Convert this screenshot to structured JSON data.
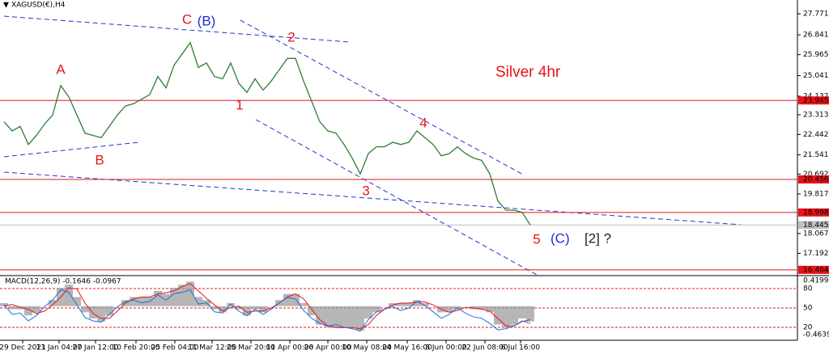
{
  "chart_data": [
    {
      "type": "line",
      "title": "XAGUSD(€),H4",
      "annotations": [
        {
          "text": "C",
          "color": "#e8141a"
        },
        {
          "text": "(B)",
          "color": "#1f2fd0"
        },
        {
          "text": "A",
          "color": "#e8141a"
        },
        {
          "text": "B",
          "color": "#e8141a"
        },
        {
          "text": "1",
          "color": "#e8141a"
        },
        {
          "text": "2",
          "color": "#e8141a"
        },
        {
          "text": "3",
          "color": "#e8141a"
        },
        {
          "text": "4",
          "color": "#e8141a"
        },
        {
          "text": "5",
          "color": "#e8141a"
        },
        {
          "text": "(C)",
          "color": "#1f2fd0"
        },
        {
          "text": "[2] ?",
          "color": "#222222"
        },
        {
          "text": "Silver 4hr",
          "color": "#e8141a"
        }
      ],
      "series": [
        {
          "color": "#2e7d32",
          "values": [
            23.0,
            22.6,
            22.8,
            22.0,
            22.4,
            22.9,
            23.3,
            24.6,
            24.1,
            23.3,
            22.5,
            22.4,
            22.3,
            22.8,
            23.3,
            23.7,
            23.8,
            24.0,
            24.2,
            25.0,
            24.5,
            25.5,
            26.0,
            26.5,
            25.4,
            25.6,
            25.0,
            24.9,
            25.6,
            24.7,
            24.3,
            24.9,
            24.4,
            24.8,
            25.3,
            25.8,
            25.8,
            24.8,
            23.9,
            23.0,
            22.6,
            22.5,
            22.0,
            21.4,
            20.7,
            21.6,
            21.9,
            21.9,
            22.1,
            22.0,
            22.1,
            22.6,
            22.3,
            22.0,
            21.5,
            21.6,
            21.9,
            21.6,
            21.4,
            21.3,
            20.7,
            19.5,
            19.1,
            19.1,
            19.0,
            18.445
          ]
        }
      ],
      "levels": [
        23.945,
        20.456,
        18.998,
        16.464
      ],
      "level_color": "#e8141a",
      "last_price": 18.445,
      "xlim": [
        -0.5,
        98
      ],
      "ylim": [
        16.21,
        28.38
      ],
      "yticks": [
        27.771,
        26.841,
        25.965,
        25.041,
        24.132,
        23.313,
        22.442,
        21.541,
        20.692,
        19.817,
        18.067,
        17.192
      ],
      "xticks": [
        {
          "value": 2.3,
          "label": "29 Dec 2021"
        },
        {
          "value": 6.8,
          "label": "13 Jan 04:00"
        },
        {
          "value": 11.3,
          "label": "27 Jan 12:00"
        },
        {
          "value": 16.3,
          "label": "10 Feb 20:00"
        },
        {
          "value": 21.1,
          "label": "25 Feb 04:00"
        },
        {
          "value": 25.7,
          "label": "11 Mar 12:00"
        },
        {
          "value": 30.5,
          "label": "25 Mar 20:00"
        },
        {
          "value": 35.3,
          "label": "11 Apr 00:00"
        },
        {
          "value": 40,
          "label": "26 Apr 00:00"
        },
        {
          "value": 44.8,
          "label": "10 May 08:00"
        },
        {
          "value": 49.8,
          "label": "24 May 16:00"
        },
        {
          "value": 54.6,
          "label": "8 Jun 00:00"
        },
        {
          "value": 59.4,
          "label": "22 Jun 08:00"
        },
        {
          "value": 63.8,
          "label": "6 Jul 16:00"
        }
      ]
    },
    {
      "type": "macd",
      "title": "MACD(12,26,9) -0.1646 -0.0967",
      "ylim": [
        -0.4639,
        0.4199
      ],
      "yticks": [
        0.4199,
        -0.4639
      ],
      "y2lim": [
        0,
        100
      ],
      "levels": [
        80,
        50,
        20
      ],
      "series": [
        {
          "color": "#9e9e9e",
          "values": [
            0.05,
            -0.05,
            -0.05,
            -0.15,
            -0.1,
            0.0,
            0.1,
            0.3,
            0.35,
            0.15,
            -0.1,
            -0.2,
            -0.25,
            -0.15,
            0.0,
            0.1,
            0.15,
            0.15,
            0.15,
            0.25,
            0.2,
            0.3,
            0.35,
            0.4,
            0.15,
            0.1,
            -0.05,
            -0.1,
            0.05,
            -0.05,
            -0.15,
            -0.05,
            -0.1,
            0.0,
            0.1,
            0.2,
            0.2,
            0.05,
            -0.15,
            -0.3,
            -0.35,
            -0.35,
            -0.35,
            -0.35,
            -0.4,
            -0.2,
            -0.1,
            0.0,
            0.05,
            0.05,
            0.05,
            0.1,
            0.05,
            0.0,
            -0.1,
            -0.1,
            -0.05,
            0.0,
            -0.05,
            -0.05,
            -0.1,
            -0.3,
            -0.35,
            -0.3,
            -0.2,
            -0.25
          ]
        },
        {
          "color": "#e8141a",
          "values": [
            0.0,
            0.03,
            -0.02,
            -0.05,
            -0.12,
            -0.08,
            0.02,
            0.15,
            0.3,
            0.28,
            0.05,
            -0.12,
            -0.2,
            -0.2,
            -0.08,
            0.05,
            0.12,
            0.15,
            0.15,
            0.2,
            0.22,
            0.25,
            0.32,
            0.37,
            0.25,
            0.13,
            0.02,
            -0.08,
            -0.02,
            0.0,
            -0.1,
            -0.08,
            -0.08,
            -0.03,
            0.05,
            0.15,
            0.2,
            0.12,
            -0.05,
            -0.22,
            -0.32,
            -0.35,
            -0.35,
            -0.35,
            -0.37,
            -0.3,
            -0.15,
            -0.05,
            0.02,
            0.05,
            0.05,
            0.07,
            0.07,
            0.02,
            -0.05,
            -0.1,
            -0.07,
            -0.02,
            -0.03,
            -0.05,
            -0.08,
            -0.2,
            -0.32,
            -0.32,
            -0.25,
            -0.22
          ]
        },
        {
          "color": "#1e6fd9",
          "axis": "y2",
          "values": [
            55,
            40,
            42,
            30,
            38,
            52,
            62,
            78,
            74,
            55,
            35,
            30,
            28,
            40,
            52,
            60,
            62,
            58,
            60,
            70,
            62,
            72,
            74,
            78,
            56,
            58,
            44,
            42,
            56,
            45,
            38,
            48,
            40,
            48,
            58,
            66,
            64,
            46,
            34,
            26,
            22,
            24,
            20,
            18,
            14,
            32,
            44,
            48,
            52,
            46,
            50,
            60,
            54,
            44,
            34,
            40,
            50,
            42,
            36,
            34,
            26,
            16,
            18,
            22,
            30,
            26
          ]
        }
      ]
    }
  ]
}
